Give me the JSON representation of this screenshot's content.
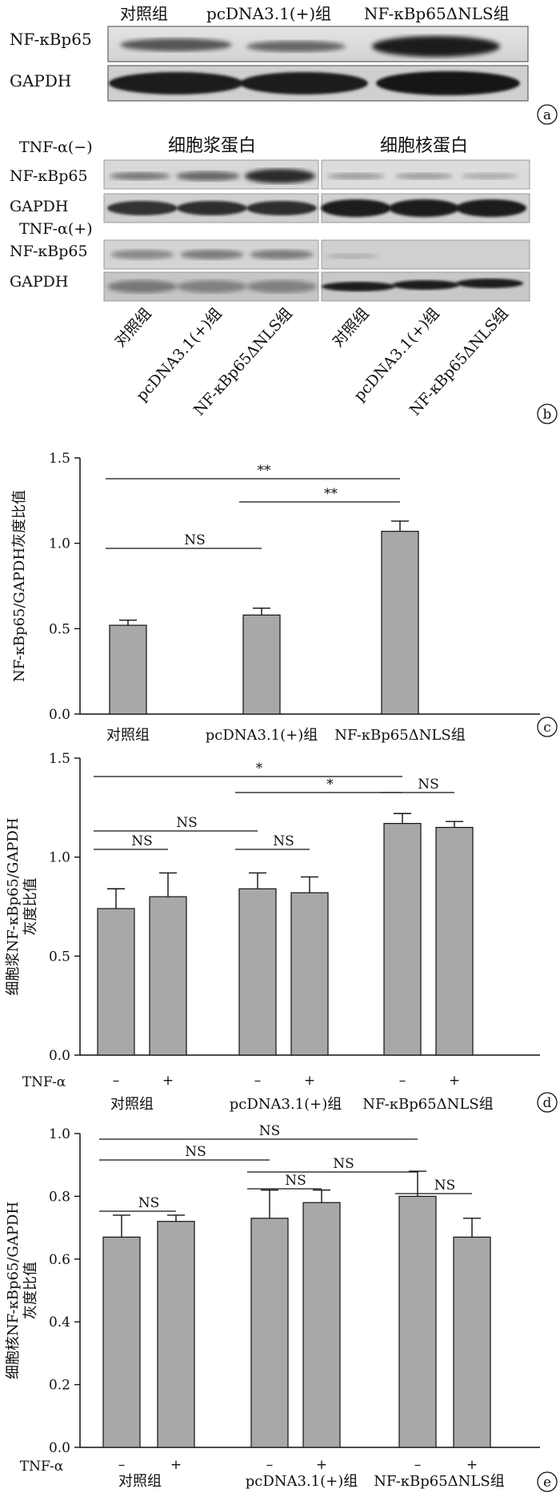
{
  "panel_a": {
    "headers": [
      "对照组",
      "pcDNA3.1(+)组",
      "NF-κBp65ΔNLS组"
    ],
    "rows": [
      "NF-κBp65",
      "GAPDH"
    ],
    "panel_label": "a"
  },
  "panel_b": {
    "tnf_minus": "TNF-α(−)",
    "tnf_plus": "TNF-α(+)",
    "cyto_header": "细胞浆蛋白",
    "nuc_header": "细胞核蛋白",
    "row_labels": [
      "NF-κBp65",
      "GAPDH",
      "NF-κBp65",
      "GAPDH"
    ],
    "groups": [
      "对照组",
      "pcDNA3.1(+)组",
      "NF-κBp65ΔNLS组"
    ],
    "panel_label": "b"
  },
  "colors": {
    "bar_fill": "#a8a8a8",
    "axis": "#111111",
    "band": "#2a2a2a"
  },
  "chart_data": [
    {
      "type": "bar",
      "panel": "c",
      "categories": [
        "对照组",
        "pcDNA3.1(+)组",
        "NF-κBp65ΔNLS组"
      ],
      "values": [
        0.52,
        0.58,
        1.07
      ],
      "errors": [
        0.03,
        0.04,
        0.06
      ],
      "ylabel": "NF-κBp65/GAPDH灰度比值",
      "ylim": [
        0,
        1.5
      ],
      "yticks": [
        "0.0",
        "0.5",
        "1.0",
        "1.5"
      ],
      "annotations": [
        {
          "from": 0,
          "to": 2,
          "label": "**"
        },
        {
          "from": 1,
          "to": 2,
          "label": "**"
        },
        {
          "from": 0,
          "to": 1,
          "label": "NS"
        }
      ]
    },
    {
      "type": "bar",
      "panel": "d",
      "groups": [
        "对照组",
        "pcDNA3.1(+)组",
        "NF-κBp65ΔNLS组"
      ],
      "conditions": [
        "–",
        "+"
      ],
      "condition_label": "TNF-α",
      "values": [
        0.74,
        0.8,
        0.84,
        0.82,
        1.17,
        1.15
      ],
      "errors": [
        0.1,
        0.12,
        0.08,
        0.08,
        0.05,
        0.03
      ],
      "ylabel": [
        "细胞浆NF-κBp65/GAPDH",
        "灰度比值"
      ],
      "ylim": [
        0,
        1.5
      ],
      "yticks": [
        "0.0",
        "0.5",
        "1.0",
        "1.5"
      ],
      "annotations": [
        {
          "from": 0,
          "to": 4,
          "label": "*"
        },
        {
          "from": 2,
          "to": 4,
          "label": "*"
        },
        {
          "from": 0,
          "to": 2,
          "label": "NS"
        },
        {
          "from": 0,
          "to": 1,
          "label": "NS"
        },
        {
          "from": 2,
          "to": 3,
          "label": "NS"
        },
        {
          "from": 4,
          "to": 5,
          "label": "NS"
        }
      ]
    },
    {
      "type": "bar",
      "panel": "e",
      "groups": [
        "对照组",
        "pcDNA3.1(+)组",
        "NF-κBp65ΔNLS组"
      ],
      "conditions": [
        "–",
        "+"
      ],
      "condition_label": "TNF-α",
      "values": [
        0.67,
        0.72,
        0.73,
        0.78,
        0.8,
        0.67
      ],
      "errors": [
        0.07,
        0.02,
        0.09,
        0.04,
        0.08,
        0.06
      ],
      "ylabel": [
        "细胞核NF-κBp65/GAPDH",
        "灰度比值"
      ],
      "ylim": [
        0,
        1.0
      ],
      "yticks": [
        "0.0",
        "0.2",
        "0.4",
        "0.6",
        "0.8",
        "1.0"
      ],
      "annotations": [
        {
          "from": 0,
          "to": 4,
          "label": "NS"
        },
        {
          "from": 0,
          "to": 2,
          "label": "NS"
        },
        {
          "from": 2,
          "to": 4,
          "label": "NS"
        },
        {
          "from": 0,
          "to": 1,
          "label": "NS"
        },
        {
          "from": 2,
          "to": 3,
          "label": "NS"
        },
        {
          "from": 4,
          "to": 5,
          "label": "NS"
        }
      ]
    }
  ]
}
